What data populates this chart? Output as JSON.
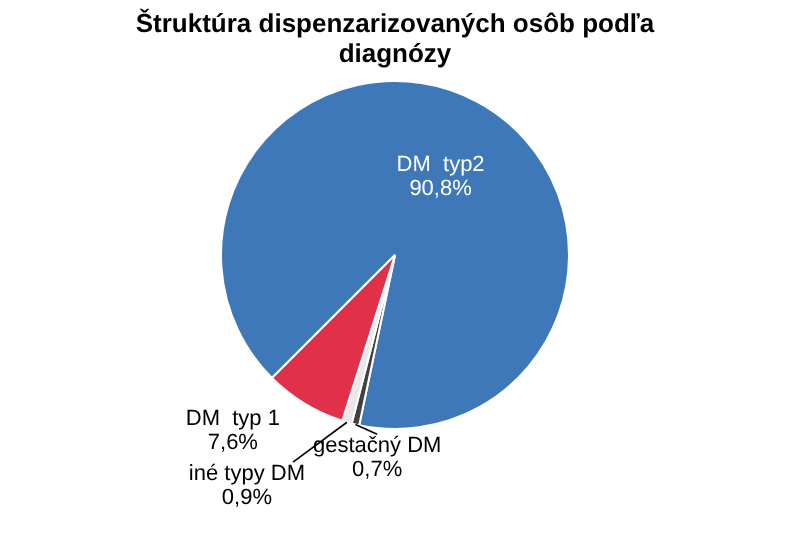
{
  "chart_data": {
    "type": "pie",
    "title": "Štruktúra dispenzarizovaných osôb podľa diagnózy",
    "categories": [
      "DM  typ2",
      "gestačný DM",
      "iné typy DM",
      "DM  typ 1"
    ],
    "values": [
      90.8,
      0.7,
      0.9,
      7.6
    ],
    "colors": [
      "#3f78b8",
      "#404040",
      "#e8e8e8",
      "#e0304a"
    ],
    "value_labels": [
      "90,8%",
      "0,7%",
      "0,9%",
      "7,6%"
    ],
    "legend": false
  }
}
